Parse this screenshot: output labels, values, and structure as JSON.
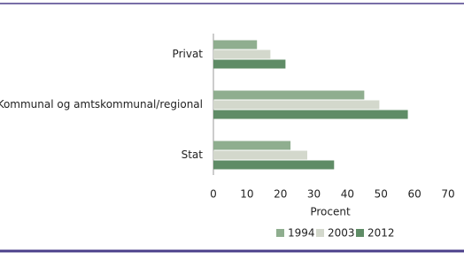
{
  "chart_data": {
    "type": "barh",
    "categories": [
      "Privat",
      "Kommunal og amtskommunal/regional",
      "Stat"
    ],
    "series": [
      {
        "name": "1994",
        "color": "#8fae8f",
        "values": [
          13,
          45,
          23
        ]
      },
      {
        "name": "2003",
        "color": "#d3d8cc",
        "values": [
          17,
          49.5,
          28
        ]
      },
      {
        "name": "2012",
        "color": "#5f8c66",
        "values": [
          21.5,
          58,
          36
        ]
      }
    ],
    "xlabel": "Procent",
    "xlim": [
      0,
      70
    ],
    "xticks": [
      0,
      10,
      20,
      30,
      40,
      50,
      60,
      70
    ],
    "legend": "bottom"
  }
}
